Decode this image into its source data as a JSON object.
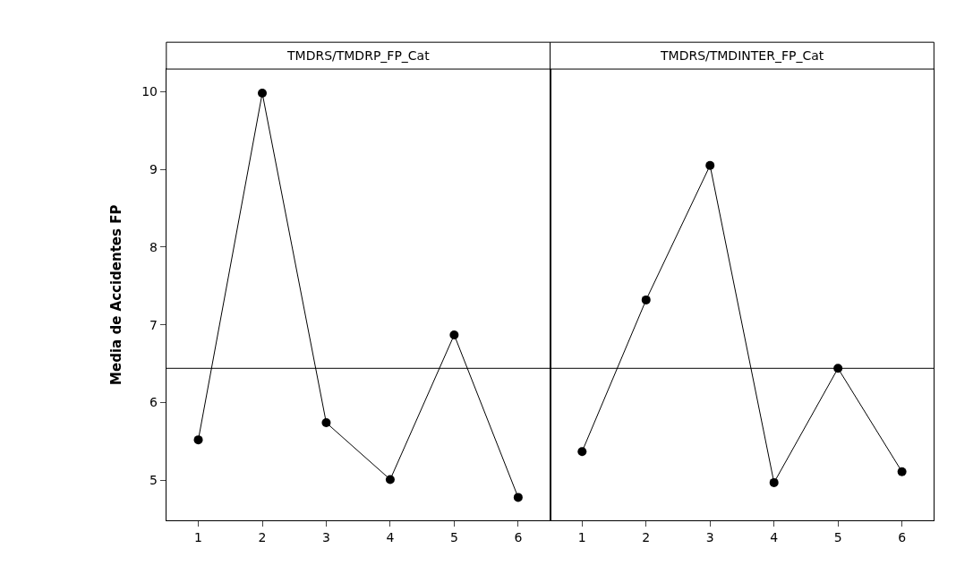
{
  "chart_data": [
    {
      "type": "line",
      "title": "TMDRS/TMDRP_FP_Cat",
      "ylabel": "Media de Accidentes FP",
      "categories": [
        "1",
        "2",
        "3",
        "4",
        "5",
        "6"
      ],
      "values": [
        5.52,
        9.98,
        5.74,
        5.01,
        6.87,
        4.78
      ],
      "color": "#000000",
      "marker": "circle",
      "ylim": [
        4.48,
        10.29
      ],
      "yticks": [
        5,
        6,
        7,
        8,
        9,
        10
      ],
      "ref_lines": [
        {
          "axis": "y",
          "value": 6.44,
          "color": "#000000"
        }
      ],
      "grid": false
    },
    {
      "type": "line",
      "title": "TMDRS/TMDINTER_FP_Cat",
      "categories": [
        "1",
        "2",
        "3",
        "4",
        "5",
        "6"
      ],
      "values": [
        5.37,
        7.32,
        9.05,
        4.97,
        6.44,
        5.11
      ],
      "color": "#000000",
      "marker": "circle",
      "ylim": [
        4.48,
        10.29
      ],
      "yticks": [
        5,
        6,
        7,
        8,
        9,
        10
      ],
      "ref_lines": [
        {
          "axis": "y",
          "value": 6.44,
          "color": "#000000"
        }
      ],
      "grid": false,
      "tick_labels": "x"
    }
  ]
}
